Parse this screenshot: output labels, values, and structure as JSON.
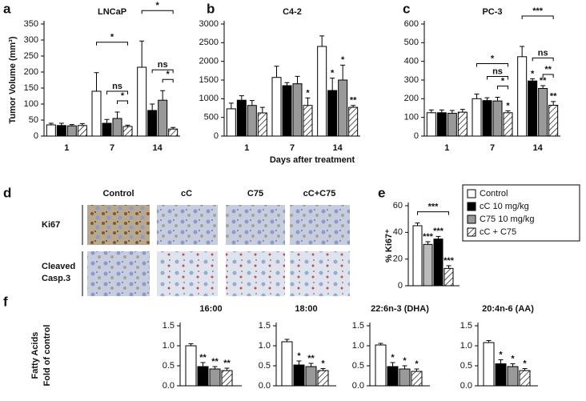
{
  "panel_labels": [
    "a",
    "b",
    "c",
    "d",
    "e",
    "f"
  ],
  "panel_d": {
    "columns": [
      "Control",
      "cC",
      "C75",
      "cC+C75"
    ],
    "rows": [
      [
        "Ki67"
      ],
      [
        "Cleaved",
        "Casp.3"
      ]
    ]
  },
  "chart_data": [
    {
      "type": "bar",
      "title": "LNCaP",
      "ylabel": "Tumor Volume (mm³)",
      "categories": [
        "1",
        "7",
        "14"
      ],
      "ylim": [
        0,
        350
      ],
      "yticks": [
        0,
        50,
        100,
        150,
        200,
        250,
        300,
        350
      ],
      "series": [
        {
          "name": "Control",
          "color": "#ffffff",
          "values": [
            35,
            140,
            215
          ],
          "errors": [
            5,
            58,
            82
          ]
        },
        {
          "name": "cC 10 mg/kg",
          "color": "#000000",
          "values": [
            33,
            40,
            80
          ],
          "errors": [
            7,
            12,
            20
          ]
        },
        {
          "name": "C75 10 mg/kg",
          "color": "#999999",
          "values": [
            32,
            55,
            112
          ],
          "errors": [
            4,
            20,
            30
          ]
        },
        {
          "name": "cC + C75",
          "color": "hatch",
          "values": [
            33,
            30,
            22
          ],
          "errors": [
            6,
            4,
            5
          ]
        }
      ],
      "brackets": [
        "*",
        "ns",
        "*",
        "*",
        "ns",
        "*"
      ]
    },
    {
      "type": "bar",
      "title": "C4-2",
      "xlabel": "Days after treatment",
      "categories": [
        "1",
        "7",
        "14"
      ],
      "ylim": [
        0,
        3000
      ],
      "yticks": [
        0,
        500,
        1000,
        1500,
        2000,
        2500,
        3000
      ],
      "series": [
        {
          "name": "Control",
          "color": "#ffffff",
          "values": [
            730,
            1570,
            2400
          ],
          "errors": [
            150,
            300,
            280
          ],
          "significance": [
            null,
            null,
            null
          ]
        },
        {
          "name": "cC 10 mg/kg",
          "color": "#000000",
          "values": [
            960,
            1350,
            1220
          ],
          "errors": [
            120,
            80,
            330
          ],
          "significance": [
            null,
            null,
            "*"
          ]
        },
        {
          "name": "C75 10 mg/kg",
          "color": "#999999",
          "values": [
            820,
            1400,
            1500
          ],
          "errors": [
            130,
            200,
            400
          ],
          "significance": [
            null,
            null,
            "*"
          ]
        },
        {
          "name": "cC + C75",
          "color": "hatch",
          "values": [
            620,
            820,
            770
          ],
          "errors": [
            150,
            200,
            50
          ],
          "significance": [
            null,
            "*",
            "**"
          ]
        }
      ]
    },
    {
      "type": "bar",
      "title": "PC-3",
      "categories": [
        "1",
        "7",
        "14"
      ],
      "ylim": [
        0,
        600
      ],
      "yticks": [
        0,
        100,
        200,
        300,
        400,
        500,
        600
      ],
      "series": [
        {
          "name": "Control",
          "color": "#ffffff",
          "values": [
            125,
            200,
            425
          ],
          "errors": [
            15,
            25,
            55
          ],
          "significance": [
            null,
            null,
            null
          ]
        },
        {
          "name": "cC 10 mg/kg",
          "color": "#000000",
          "values": [
            125,
            190,
            295
          ],
          "errors": [
            15,
            15,
            12
          ],
          "significance": [
            null,
            null,
            "*"
          ]
        },
        {
          "name": "C75 10 mg/kg",
          "color": "#999999",
          "values": [
            122,
            188,
            255
          ],
          "errors": [
            15,
            20,
            15
          ],
          "significance": [
            null,
            null,
            "**"
          ]
        },
        {
          "name": "cC + C75",
          "color": "hatch",
          "values": [
            128,
            125,
            165
          ],
          "errors": [
            15,
            10,
            20
          ],
          "significance": [
            null,
            "*",
            "**"
          ]
        }
      ],
      "brackets": [
        "*",
        "ns",
        "*",
        "***",
        "ns",
        "**"
      ]
    },
    {
      "type": "bar",
      "ylabel": "% Ki67⁺",
      "categories": [
        null,
        null,
        null,
        null
      ],
      "ylim": [
        0,
        60
      ],
      "yticks": [
        0,
        20,
        40,
        60
      ],
      "values": [
        45,
        31,
        35,
        13
      ],
      "errors": [
        2,
        2,
        2,
        2
      ],
      "significance": [
        null,
        "***",
        "***",
        "***"
      ],
      "colors": [
        "#ffffff",
        "#bbbbbb",
        "#000000",
        "hatch"
      ],
      "brackets": [
        "***"
      ]
    },
    {
      "type": "bar",
      "title": "16:00",
      "ylabel": [
        "Fatty Acids",
        "Fold of control"
      ],
      "categories": [
        null,
        null,
        null,
        null
      ],
      "ylim": [
        0,
        1.5
      ],
      "yticks": [
        {
          "value": 0,
          "label": "0.0"
        },
        {
          "value": 0.5,
          "label": "0.5"
        },
        {
          "value": 1,
          "label": "1.0"
        },
        {
          "value": 1.5,
          "label": "1.5"
        }
      ],
      "values": [
        1.0,
        0.48,
        0.42,
        0.38
      ],
      "errors": [
        0.05,
        0.1,
        0.06,
        0.06
      ],
      "significance": [
        null,
        "**",
        "**",
        "**"
      ],
      "colors": [
        "#ffffff",
        "#000000",
        "#999999",
        "hatch"
      ]
    },
    {
      "type": "bar",
      "title": "18:00",
      "categories": [
        null,
        null,
        null,
        null
      ],
      "ylim": [
        0,
        1.5
      ],
      "yticks": [
        {
          "value": 0,
          "label": "0.0"
        },
        {
          "value": 0.5,
          "label": "0.5"
        },
        {
          "value": 1,
          "label": "1.0"
        },
        {
          "value": 1.5,
          "label": "1.5"
        }
      ],
      "values": [
        1.1,
        0.52,
        0.48,
        0.38
      ],
      "errors": [
        0.06,
        0.1,
        0.08,
        0.05
      ],
      "significance": [
        null,
        "*",
        "**",
        "*"
      ],
      "colors": [
        "#ffffff",
        "#000000",
        "#999999",
        "hatch"
      ]
    },
    {
      "type": "bar",
      "title": "22:6n-3 (DHA)",
      "categories": [
        null,
        null,
        null,
        null
      ],
      "ylim": [
        0,
        1.5
      ],
      "yticks": [
        {
          "value": 0,
          "label": "0.0"
        },
        {
          "value": 0.5,
          "label": "0.5"
        },
        {
          "value": 1,
          "label": "1.0"
        },
        {
          "value": 1.5,
          "label": "1.5"
        }
      ],
      "values": [
        1.02,
        0.48,
        0.42,
        0.36
      ],
      "errors": [
        0.04,
        0.1,
        0.08,
        0.06
      ],
      "significance": [
        null,
        "*",
        "*",
        "*"
      ],
      "colors": [
        "#ffffff",
        "#000000",
        "#999999",
        "hatch"
      ]
    },
    {
      "type": "bar",
      "title": "20:4n-6 (AA)",
      "categories": [
        null,
        null,
        null,
        null
      ],
      "ylim": [
        0,
        1.5
      ],
      "yticks": [
        {
          "value": 0,
          "label": "0.0"
        },
        {
          "value": 0.5,
          "label": "0.5"
        },
        {
          "value": 1,
          "label": "1.0"
        },
        {
          "value": 1.5,
          "label": "1.5"
        }
      ],
      "values": [
        1.08,
        0.55,
        0.48,
        0.38
      ],
      "errors": [
        0.05,
        0.1,
        0.07,
        0.05
      ],
      "significance": [
        null,
        "*",
        "*",
        "*"
      ],
      "colors": [
        "#ffffff",
        "#000000",
        "#999999",
        "hatch"
      ]
    }
  ]
}
